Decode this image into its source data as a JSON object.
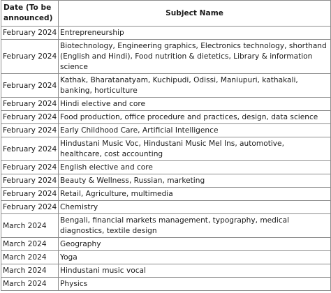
{
  "table": {
    "headers": {
      "date": "Date (To be announced)",
      "subject": "Subject Name"
    },
    "rows": [
      {
        "date": "February 2024",
        "subject": "Entrepreneurship"
      },
      {
        "date": "February 2024",
        "subject": "Biotechnology, Engineering graphics, Electronics technology, shorthand (English and Hindi), Food nutrition & dietetics, Library & information science"
      },
      {
        "date": "February 2024",
        "subject": "Kathak, Bharatanatyam, Kuchipudi, Odissi, Maniupuri, kathakali, banking, horticulture"
      },
      {
        "date": "February 2024",
        "subject": "Hindi elective and core"
      },
      {
        "date": "February 2024",
        "subject": "Food production, office procedure and practices, design, data science"
      },
      {
        "date": "February 2024",
        "subject": "Early Childhood Care, Artificial Intelligence"
      },
      {
        "date": "February 2024",
        "subject": "Hindustani Music Voc, Hindustani Music Mel Ins, automotive, healthcare, cost accounting"
      },
      {
        "date": "February 2024",
        "subject": "English elective and core"
      },
      {
        "date": "February 2024",
        "subject": "Beauty & Wellness, Russian, marketing"
      },
      {
        "date": "February 2024",
        "subject": "Retail, Agriculture, multimedia"
      },
      {
        "date": "February 2024",
        "subject": "Chemistry"
      },
      {
        "date": "March 2024",
        "subject": "Bengali, financial markets management, typography, medical diagnostics, textile design"
      },
      {
        "date": "March 2024",
        "subject": "Geography"
      },
      {
        "date": "March 2024",
        "subject": "Yoga"
      },
      {
        "date": "March 2024",
        "subject": "Hindustani music vocal"
      },
      {
        "date": "March 2024",
        "subject": "Physics"
      }
    ]
  }
}
